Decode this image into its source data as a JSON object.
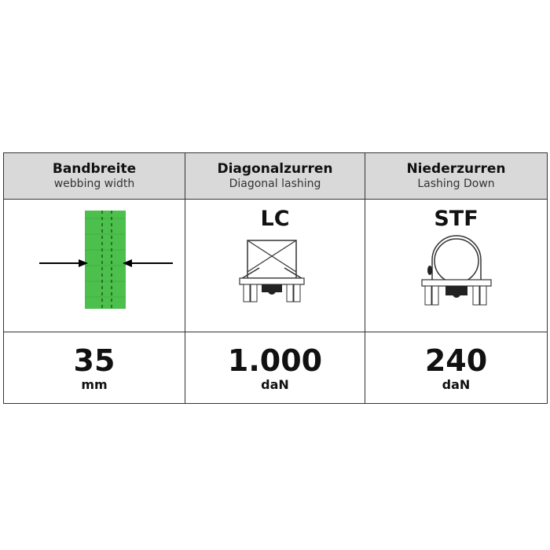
{
  "columns": [
    {
      "title": "Bandbreite",
      "subtitle": "webbing width",
      "icon": "webbing-width-icon",
      "value": "35",
      "unit": "mm"
    },
    {
      "title": "Diagonalzurren",
      "subtitle": "Diagonal lashing",
      "code": "LC",
      "icon": "diagonal-lashing-icon",
      "value": "1.000",
      "unit": "daN"
    },
    {
      "title": "Niederzurren",
      "subtitle": "Lashing Down",
      "code": "STF",
      "icon": "lashing-down-icon",
      "value": "240",
      "unit": "daN"
    }
  ],
  "colors": {
    "header_bg": "#d9d9d9",
    "webbing": "#4cbf4c"
  }
}
